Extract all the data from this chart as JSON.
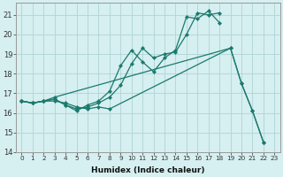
{
  "xlabel": "Humidex (Indice chaleur)",
  "bg_color": "#d6eff0",
  "grid_color": "#b0d4d4",
  "line_color": "#1a7a6e",
  "xlim": [
    -0.5,
    23.5
  ],
  "ylim": [
    14,
    21.6
  ],
  "yticks": [
    14,
    15,
    16,
    17,
    18,
    19,
    20,
    21
  ],
  "xticks": [
    0,
    1,
    2,
    3,
    4,
    5,
    6,
    7,
    8,
    9,
    10,
    11,
    12,
    13,
    14,
    15,
    16,
    17,
    18,
    19,
    20,
    21,
    22,
    23
  ],
  "series": [
    {
      "x": [
        0,
        1,
        2,
        3,
        4,
        5,
        6,
        7,
        8,
        19,
        20,
        21,
        22
      ],
      "y": [
        16.6,
        16.5,
        16.6,
        16.6,
        16.5,
        16.3,
        16.2,
        16.3,
        16.2,
        19.3,
        17.5,
        16.1,
        14.5
      ]
    },
    {
      "x": [
        0,
        1,
        2,
        3,
        4,
        5,
        6,
        7,
        8,
        9,
        10,
        11,
        12,
        13,
        14,
        15,
        16,
        17,
        18
      ],
      "y": [
        16.6,
        16.5,
        16.6,
        16.7,
        16.4,
        16.2,
        16.3,
        16.5,
        16.8,
        17.4,
        18.5,
        19.3,
        18.8,
        19.0,
        19.1,
        20.0,
        21.1,
        21.0,
        21.1
      ]
    },
    {
      "x": [
        0,
        1,
        2,
        3,
        4,
        5,
        6,
        7,
        8,
        9,
        10,
        11,
        12,
        13,
        14,
        15,
        16,
        17,
        18
      ],
      "y": [
        16.6,
        16.5,
        16.6,
        16.7,
        16.4,
        16.1,
        16.4,
        16.6,
        17.1,
        18.4,
        19.2,
        18.6,
        18.1,
        18.8,
        19.2,
        20.9,
        20.8,
        21.2,
        20.6
      ]
    },
    {
      "x": [
        0,
        1,
        2,
        3,
        19,
        20,
        21,
        22
      ],
      "y": [
        16.6,
        16.5,
        16.6,
        16.8,
        19.3,
        17.5,
        16.1,
        14.5
      ]
    }
  ]
}
